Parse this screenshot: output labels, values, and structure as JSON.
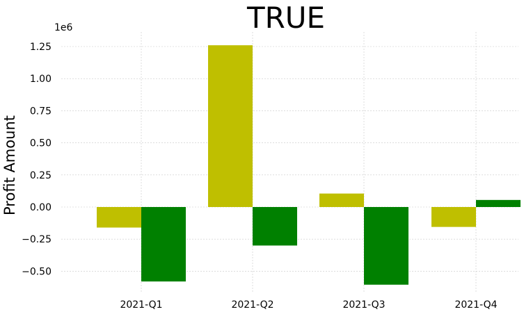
{
  "chart_data": {
    "type": "bar",
    "title": "TRUE",
    "xlabel": "",
    "ylabel": "Profit Amount",
    "y_offset_label": "1e6",
    "categories": [
      "2021-Q1",
      "2021-Q2",
      "2021-Q3",
      "2021-Q4"
    ],
    "series": [
      {
        "color": "#bfbf00",
        "values": [
          -160000,
          1260000,
          105000,
          -155000
        ]
      },
      {
        "color": "#008000",
        "values": [
          -580000,
          -300000,
          -605000,
          55000
        ]
      }
    ],
    "ylim": [
      -0.69,
      1.36
    ],
    "yticks": [
      -0.5,
      -0.25,
      0.0,
      0.25,
      0.5,
      0.75,
      1.0,
      1.25
    ],
    "ytick_labels": [
      "−0.50",
      "−0.25",
      "0.00",
      "0.25",
      "0.50",
      "0.75",
      "1.00",
      "1.25"
    ],
    "grid": true,
    "legend": "none"
  }
}
